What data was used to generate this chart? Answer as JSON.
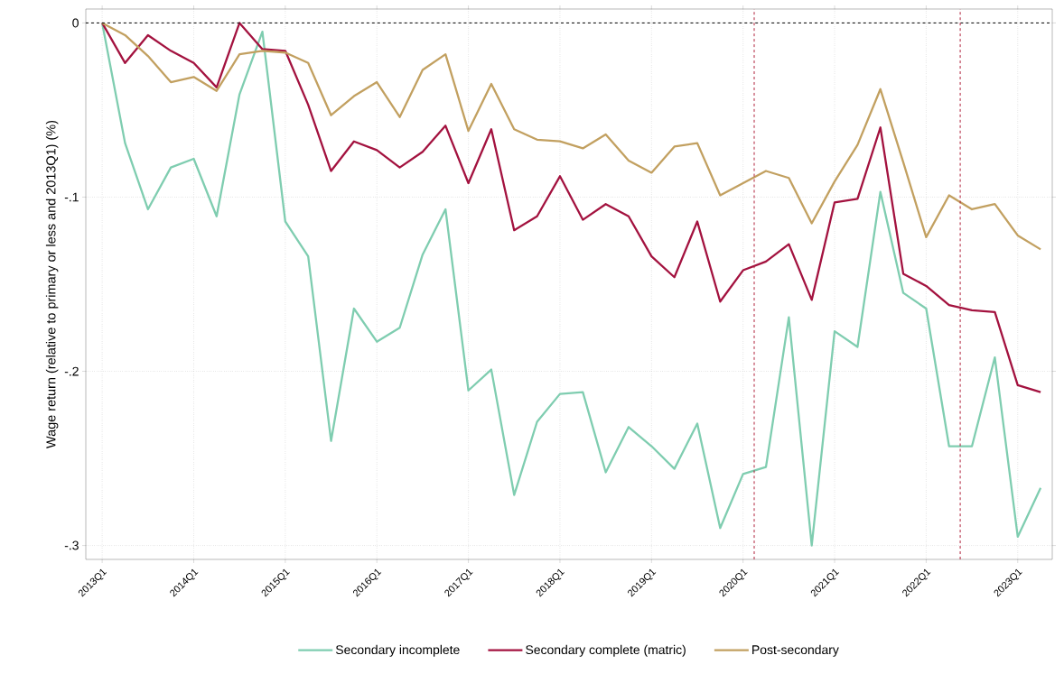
{
  "chart_data": {
    "type": "line",
    "ylabel": "Wage return (relative to primary or less and 2013Q1) (%)",
    "x": [
      "2013-01",
      "2013-04",
      "2013-07",
      "2013-10",
      "2014-01",
      "2014-04",
      "2014-07",
      "2014-10",
      "2015-01",
      "2015-04",
      "2015-07",
      "2015-10",
      "2016-01",
      "2016-04",
      "2016-07",
      "2016-10",
      "2017-01",
      "2017-04",
      "2017-07",
      "2017-10",
      "2018-01",
      "2018-04",
      "2018-07",
      "2018-10",
      "2019-01",
      "2019-04",
      "2019-07",
      "2019-10",
      "2020-01",
      "2020-04",
      "2020-07",
      "2020-10",
      "2021-01",
      "2021-04",
      "2021-07",
      "2021-10",
      "2022-01",
      "2022-04",
      "2022-07",
      "2022-10",
      "2023-01",
      "2023-04"
    ],
    "series": [
      {
        "name": "Secondary incomplete",
        "color": "#7fcdb0",
        "values": [
          0,
          -0.069,
          -0.107,
          -0.083,
          -0.078,
          -0.111,
          -0.041,
          -0.005,
          -0.114,
          -0.134,
          -0.24,
          -0.164,
          -0.183,
          -0.175,
          -0.133,
          -0.107,
          -0.211,
          -0.199,
          -0.271,
          -0.229,
          -0.213,
          -0.212,
          -0.258,
          -0.232,
          -0.243,
          -0.256,
          -0.23,
          -0.29,
          -0.259,
          -0.255,
          -0.169,
          -0.3,
          -0.177,
          -0.186,
          -0.097,
          -0.155,
          -0.164,
          -0.243,
          -0.243,
          -0.192,
          -0.295,
          -0.267
        ]
      },
      {
        "name": "Secondary complete (matric)",
        "color": "#a3123f",
        "values": [
          0,
          -0.023,
          -0.007,
          -0.016,
          -0.023,
          -0.037,
          0,
          -0.015,
          -0.016,
          -0.047,
          -0.085,
          -0.068,
          -0.073,
          -0.083,
          -0.074,
          -0.059,
          -0.092,
          -0.061,
          -0.119,
          -0.111,
          -0.088,
          -0.113,
          -0.104,
          -0.111,
          -0.134,
          -0.146,
          -0.114,
          -0.16,
          -0.142,
          -0.137,
          -0.127,
          -0.159,
          -0.103,
          -0.101,
          -0.06,
          -0.144,
          -0.151,
          -0.162,
          -0.165,
          -0.166,
          -0.208,
          -0.212
        ]
      },
      {
        "name": "Post-secondary",
        "color": "#c2a060",
        "values": [
          0,
          -0.007,
          -0.019,
          -0.034,
          -0.031,
          -0.039,
          -0.018,
          -0.016,
          -0.017,
          -0.023,
          -0.053,
          -0.042,
          -0.034,
          -0.054,
          -0.027,
          -0.018,
          -0.062,
          -0.035,
          -0.061,
          -0.067,
          -0.068,
          -0.072,
          -0.064,
          -0.079,
          -0.086,
          -0.071,
          -0.069,
          -0.099,
          -0.092,
          -0.085,
          -0.089,
          -0.115,
          -0.091,
          -0.07,
          -0.038,
          -0.08,
          -0.123,
          -0.099,
          -0.107,
          -0.104,
          -0.122,
          -0.13
        ]
      }
    ],
    "xlim": [
      "2012-10-27",
      "2023-05-17"
    ],
    "ylim": [
      -0.308,
      0.008
    ],
    "xticks": [
      {
        "value": "2013-01",
        "label": "2013Q1"
      },
      {
        "value": "2014-01",
        "label": "2014Q1"
      },
      {
        "value": "2015-01",
        "label": "2015Q1"
      },
      {
        "value": "2016-01",
        "label": "2016Q1"
      },
      {
        "value": "2017-01",
        "label": "2017Q1"
      },
      {
        "value": "2018-01",
        "label": "2018Q1"
      },
      {
        "value": "2019-01",
        "label": "2019Q1"
      },
      {
        "value": "2020-01",
        "label": "2020Q1"
      },
      {
        "value": "2021-01",
        "label": "2021Q1"
      },
      {
        "value": "2022-01",
        "label": "2022Q1"
      },
      {
        "value": "2023-01",
        "label": "2023Q1"
      }
    ],
    "yticks": [
      0,
      {
        "value": -0.1,
        "label": "-.1"
      },
      {
        "value": -0.2,
        "label": "-.2"
      },
      {
        "value": -0.3,
        "label": "-.3"
      }
    ],
    "ref_lines": [
      {
        "axis": "y",
        "value": 0,
        "color": "#000000",
        "line_style": "dashed"
      },
      {
        "axis": "x",
        "value": "2020-02-15",
        "color": "#b0203a",
        "line_style": "dashed"
      },
      {
        "axis": "x",
        "value": "2022-05-15",
        "color": "#b0203a",
        "line_style": "dashed"
      }
    ],
    "grid": true,
    "legend": "bottom"
  }
}
